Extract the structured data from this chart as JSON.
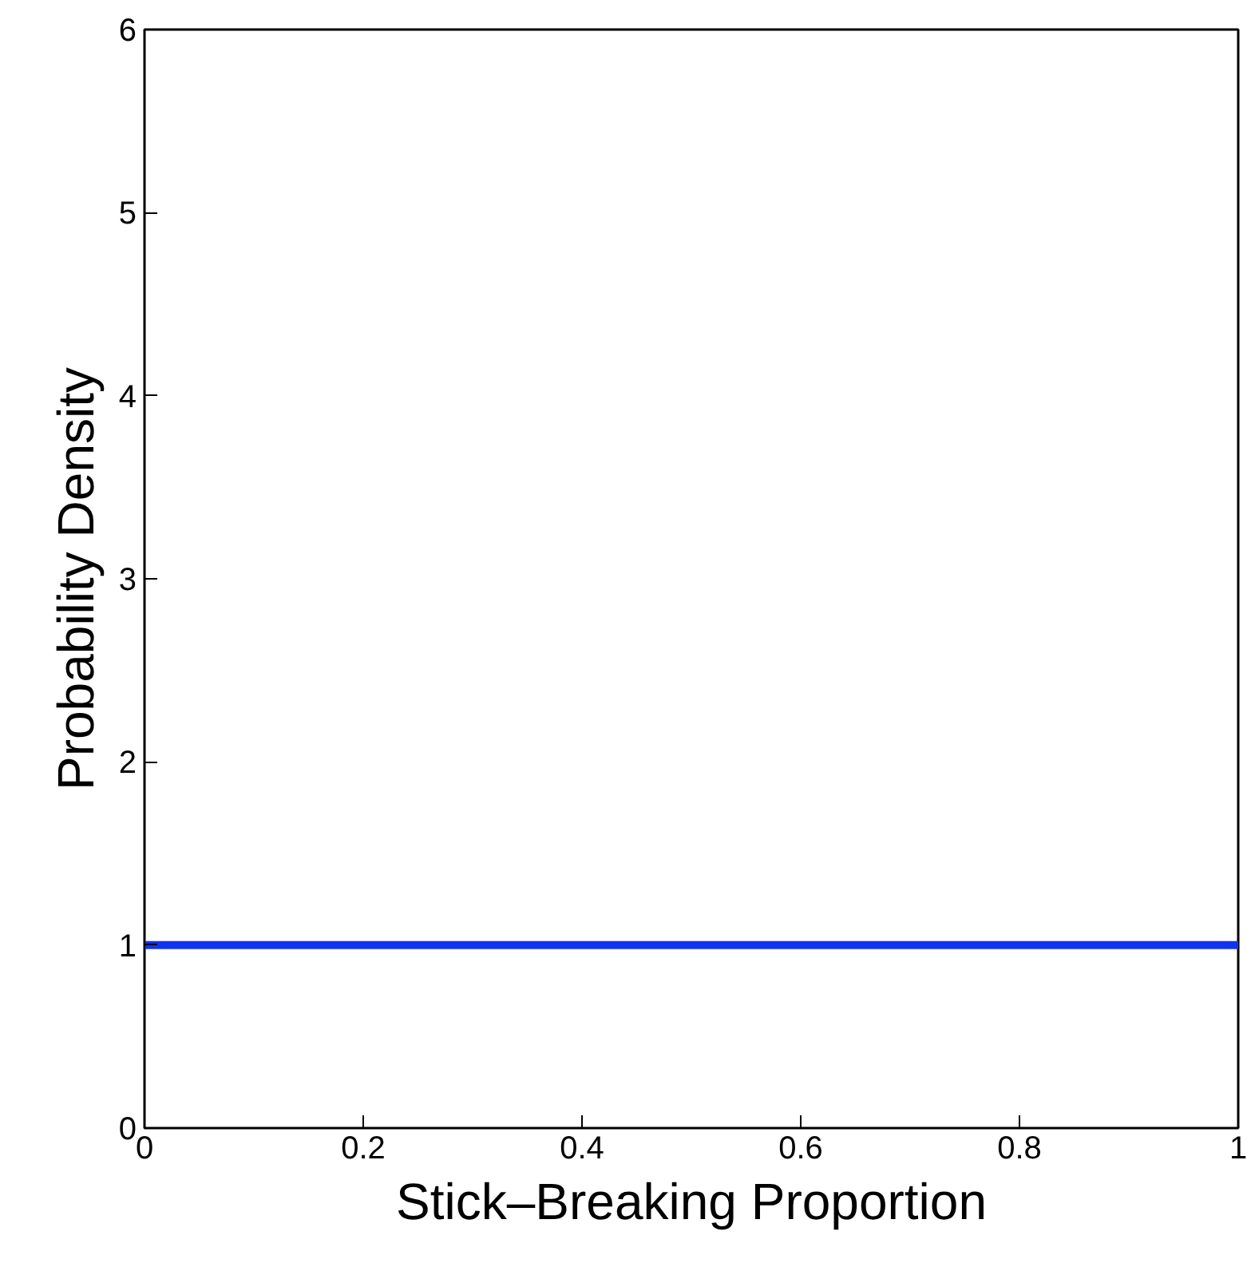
{
  "chart_data": {
    "type": "line",
    "xlabel": "Stick–Breaking Proportion",
    "ylabel": "Probability Density",
    "x": [
      0,
      1
    ],
    "series": [
      {
        "color": "#1233ee",
        "values": [
          1,
          1
        ]
      }
    ],
    "xlim": [
      0,
      1
    ],
    "xticks": [
      0,
      0.2,
      0.4,
      0.6,
      0.8,
      1
    ],
    "ylim": [
      0,
      6
    ],
    "yticks": [
      0,
      1,
      2,
      3,
      4,
      5,
      6
    ],
    "grid": false,
    "marker": "none",
    "line_style": "solid"
  }
}
